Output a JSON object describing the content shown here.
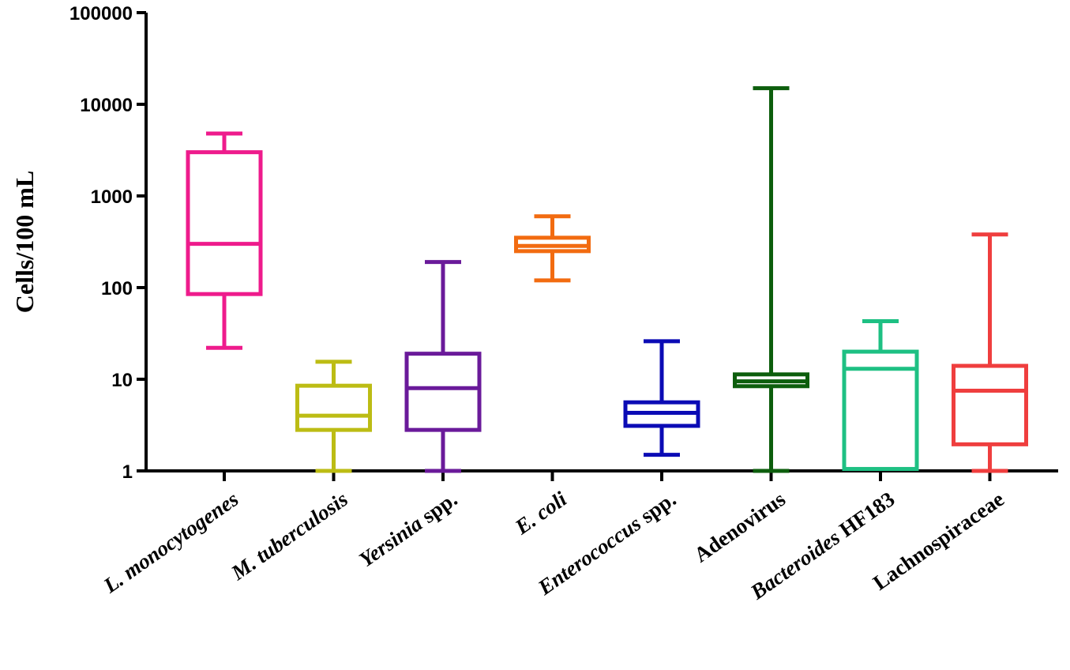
{
  "chart_data": {
    "type": "boxplot",
    "title": "",
    "xlabel": "",
    "ylabel": "Cells/100 mL",
    "yscale": "log",
    "ylim": [
      1,
      100000
    ],
    "yticks": [
      1,
      10,
      100,
      1000,
      10000,
      100000
    ],
    "ytick_labels": [
      "1",
      "10",
      "100",
      "1000",
      "10000",
      "100000"
    ],
    "grid": false,
    "categories": [
      {
        "italic": "L. monocytogenes",
        "roman": "",
        "color": "#ee1b8c",
        "min": 22,
        "q1": 85,
        "median": 300,
        "q3": 3000,
        "max": 4800
      },
      {
        "italic": "M. tuberculosis",
        "roman": "",
        "color": "#bcbc14",
        "min": 1,
        "q1": 2.8,
        "median": 4,
        "q3": 8.5,
        "max": 15.5
      },
      {
        "italic": "Yersinia",
        "roman": "spp.",
        "color": "#6a1a9a",
        "min": 1,
        "q1": 2.8,
        "median": 8,
        "q3": 19,
        "max": 190
      },
      {
        "italic": "E. coli",
        "roman": "",
        "color": "#f26b10",
        "min": 120,
        "q1": 250,
        "median": 285,
        "q3": 350,
        "max": 600
      },
      {
        "italic": "Enterococcus",
        "roman": "spp.",
        "color": "#0b0bb5",
        "min": 1.5,
        "q1": 3.1,
        "median": 4.3,
        "q3": 5.6,
        "max": 26
      },
      {
        "italic": "",
        "roman": "Adenovirus",
        "color": "#0d5e0d",
        "min": 1,
        "q1": 8.4,
        "median": 9.5,
        "q3": 11.3,
        "max": 15000
      },
      {
        "italic": "Bacteroides",
        "roman": "HF183",
        "color": "#1ec083",
        "min": 1.05,
        "q1": 1.05,
        "median": 13,
        "q3": 20,
        "max": 43
      },
      {
        "italic": "",
        "roman": "Lachnospiraceae",
        "color": "#ef3e3e",
        "min": 1,
        "q1": 1.95,
        "median": 7.5,
        "q3": 14,
        "max": 380
      }
    ]
  }
}
